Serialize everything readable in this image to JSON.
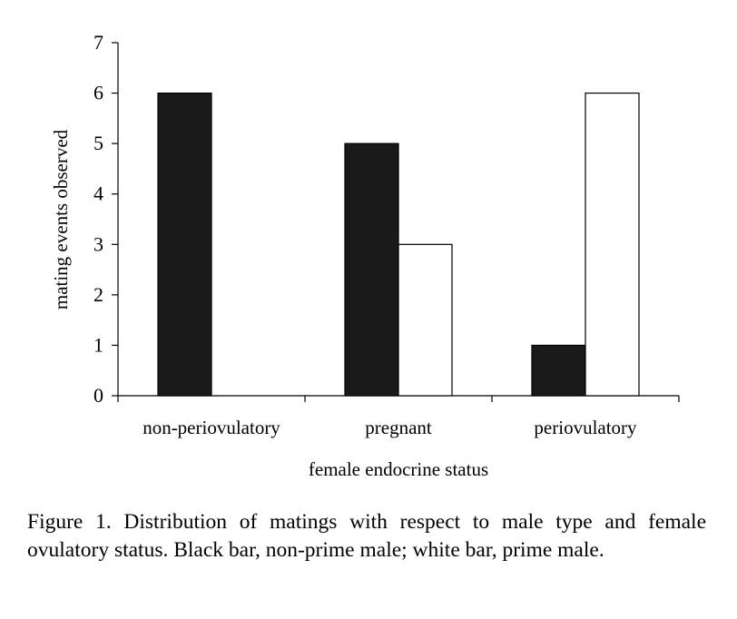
{
  "chart_data": {
    "type": "bar",
    "categories": [
      "non-periovulatory",
      "pregnant",
      "periovulatory"
    ],
    "series": [
      {
        "values": [
          6,
          5,
          1
        ],
        "color": "#1a1a1a"
      },
      {
        "values": [
          0,
          3,
          6
        ],
        "color": "#ffffff"
      }
    ],
    "xlabel": "female endocrine status",
    "ylabel": "mating events observed",
    "ylim": [
      0,
      7
    ],
    "yticks": [
      0,
      1,
      2,
      3,
      4,
      5,
      6,
      7
    ],
    "ytick_labels": [
      "0",
      "1",
      "2",
      "3",
      "4",
      "5",
      "6",
      "7"
    ],
    "grid": false
  },
  "caption": "Figure 1. Distribution of matings with respect to male type and female ovulatory status. Black bar, non-prime male; white bar, prime male."
}
